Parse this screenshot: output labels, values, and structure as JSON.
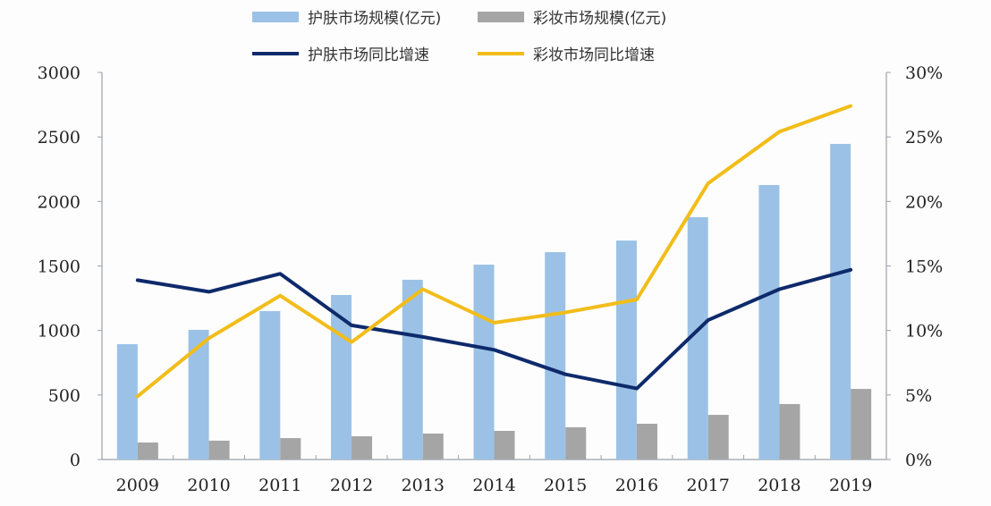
{
  "chart_data": {
    "type": "bar+line",
    "title": "",
    "categories": [
      "2009",
      "2010",
      "2011",
      "2012",
      "2013",
      "2014",
      "2015",
      "2016",
      "2017",
      "2018",
      "2019"
    ],
    "series": [
      {
        "name": "护肤市场规模(亿元)",
        "type": "bar",
        "axis": "left",
        "color": "#9bc2e6",
        "values": [
          894,
          1005,
          1150,
          1275,
          1393,
          1510,
          1607,
          1697,
          1878,
          2127,
          2446
        ]
      },
      {
        "name": "彩妆市场规模(亿元)",
        "type": "bar",
        "axis": "left",
        "color": "#a5a5a5",
        "values": [
          132,
          146,
          166,
          180,
          201,
          222,
          250,
          277,
          346,
          430,
          547
        ]
      },
      {
        "name": "护肤市场同比增速",
        "type": "line",
        "axis": "right",
        "color": "#0e2a6b",
        "values": [
          13.9,
          13.0,
          14.4,
          10.4,
          9.5,
          8.5,
          6.6,
          5.5,
          10.8,
          13.2,
          14.7
        ]
      },
      {
        "name": "彩妆市场同比增速",
        "type": "line",
        "axis": "right",
        "color": "#f2bd1a",
        "values": [
          4.9,
          9.4,
          12.7,
          9.1,
          13.2,
          10.6,
          11.4,
          12.4,
          21.4,
          25.4,
          27.4
        ]
      }
    ],
    "left_axis": {
      "min": 0,
      "max": 3000,
      "ticks": [
        "0",
        "500",
        "1000",
        "1500",
        "2000",
        "2500",
        "3000"
      ]
    },
    "right_axis": {
      "min": 0,
      "max": 30,
      "ticks": [
        "0%",
        "5%",
        "10%",
        "15%",
        "20%",
        "25%",
        "30%"
      ]
    },
    "xlabel": "",
    "ylabel": "",
    "y2label": "",
    "grid": false,
    "legend_position": "top"
  },
  "legend": {
    "skin_bar": "护肤市场规模(亿元)",
    "makeup_bar": "彩妆市场规模(亿元)",
    "skin_line": "护肤市场同比增速",
    "makeup_line": "彩妆市场同比增速"
  }
}
